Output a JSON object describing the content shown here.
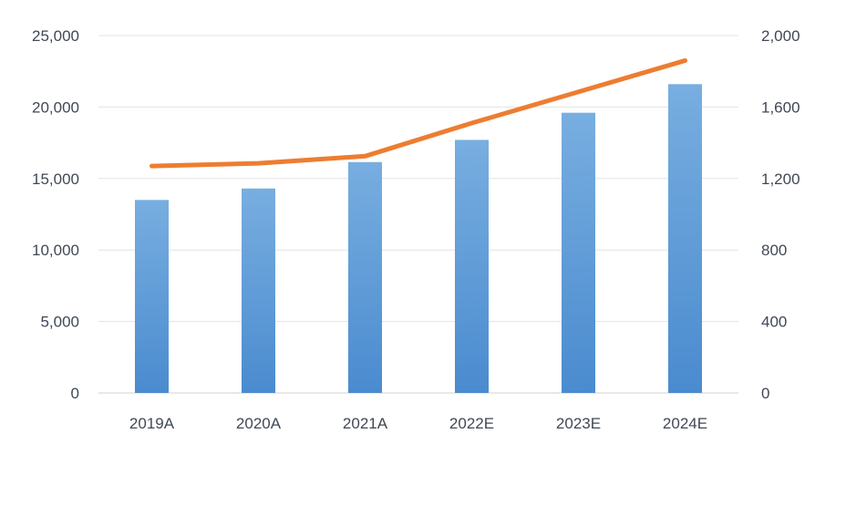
{
  "chart_data": {
    "type": "bar",
    "title": "",
    "xlabel": "",
    "ylabel": "",
    "categories": [
      "2019A",
      "2020A",
      "2021A",
      "2022E",
      "2023E",
      "2024E"
    ],
    "series": [
      {
        "type": "bar",
        "axis": "left",
        "values": [
          13500,
          14300,
          16150,
          17700,
          19600,
          21600
        ],
        "color": "#5b9bd5"
      },
      {
        "type": "line",
        "axis": "right",
        "values": [
          1270,
          1285,
          1325,
          1510,
          1685,
          1860
        ],
        "color": "#ed7d31"
      }
    ],
    "ylim": [
      0,
      25000
    ],
    "yticks": [
      "0",
      "5,000",
      "10,000",
      "15,000",
      "20,000",
      "25,000"
    ],
    "y2lim": [
      0,
      2000
    ],
    "y2ticks": [
      "0",
      "400",
      "800",
      "1,200",
      "1,600",
      "2,000"
    ],
    "grid": true,
    "legend": "none"
  }
}
